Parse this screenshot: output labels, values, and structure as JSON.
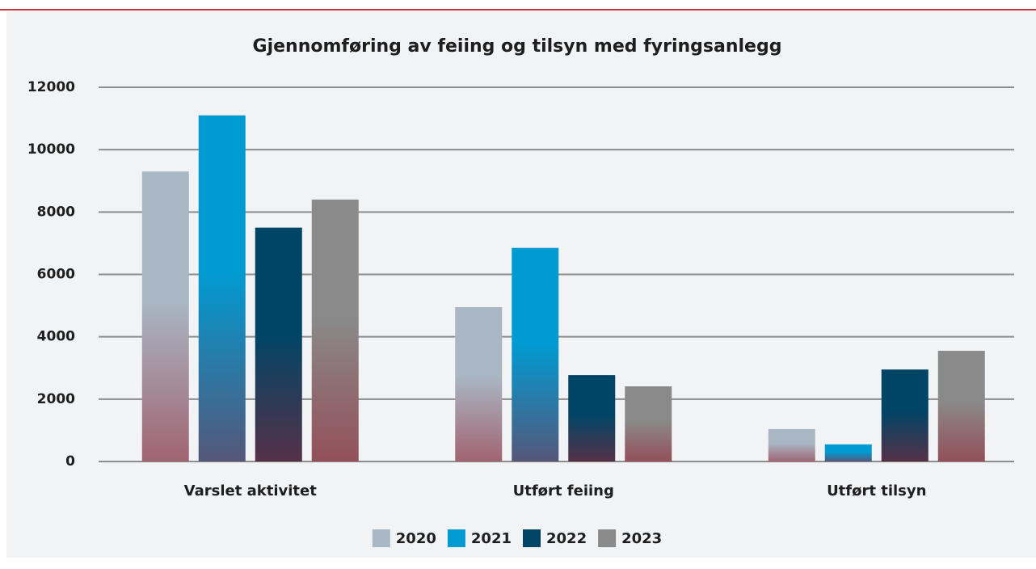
{
  "chart_data": {
    "type": "bar",
    "title": "Gjennomføring av feiing og tilsyn med fyringsanlegg",
    "categories": [
      "Varslet aktivitet",
      "Utført feiing",
      "Utført tilsyn"
    ],
    "series": [
      {
        "name": "2020",
        "color": "#a9b6c3",
        "values": [
          9300,
          4950,
          1040
        ]
      },
      {
        "name": "2021",
        "color": "#009bd2",
        "values": [
          11100,
          6850,
          550
        ]
      },
      {
        "name": "2022",
        "color": "#004566",
        "values": [
          7500,
          2770,
          2950
        ]
      },
      {
        "name": "2023",
        "color": "#8a8a8a",
        "values": [
          8400,
          2410,
          3550
        ]
      }
    ],
    "ylim": [
      0,
      12000
    ],
    "yticks": [
      0,
      2000,
      4000,
      6000,
      8000,
      10000,
      12000
    ],
    "grid": true,
    "legend": "bottom"
  }
}
